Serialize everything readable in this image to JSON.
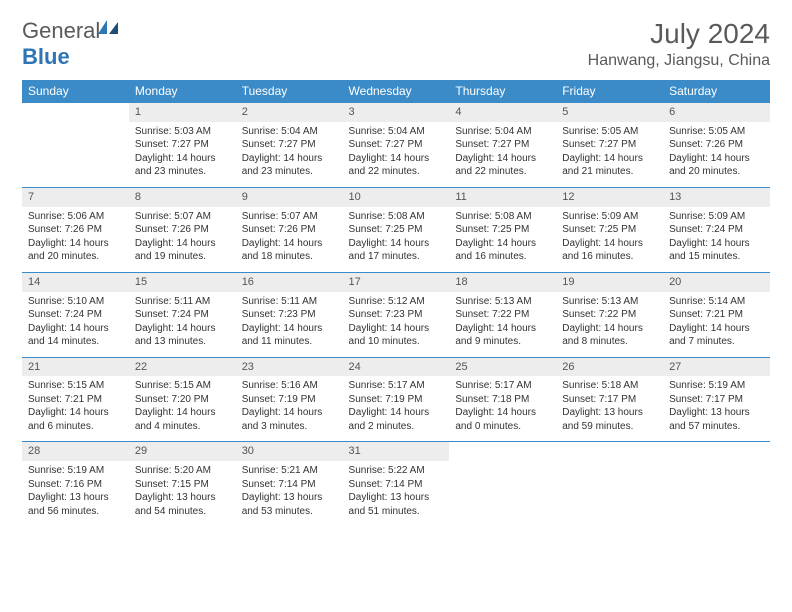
{
  "brand": {
    "part1": "General",
    "part2": "Blue"
  },
  "title": "July 2024",
  "location": "Hanwang, Jiangsu, China",
  "colors": {
    "header_bg": "#3b8bc8",
    "header_text": "#ffffff",
    "daynum_bg": "#ededed",
    "border": "#3b8bc8",
    "text": "#333333",
    "title_text": "#5a5a5a",
    "brand_blue": "#2e75b6"
  },
  "fonts": {
    "title_size": 28,
    "location_size": 16,
    "header_size": 12,
    "cell_size": 10
  },
  "weekdays": [
    "Sunday",
    "Monday",
    "Tuesday",
    "Wednesday",
    "Thursday",
    "Friday",
    "Saturday"
  ],
  "weeks": [
    [
      null,
      {
        "n": "1",
        "sr": "Sunrise: 5:03 AM",
        "ss": "Sunset: 7:27 PM",
        "dl1": "Daylight: 14 hours",
        "dl2": "and 23 minutes."
      },
      {
        "n": "2",
        "sr": "Sunrise: 5:04 AM",
        "ss": "Sunset: 7:27 PM",
        "dl1": "Daylight: 14 hours",
        "dl2": "and 23 minutes."
      },
      {
        "n": "3",
        "sr": "Sunrise: 5:04 AM",
        "ss": "Sunset: 7:27 PM",
        "dl1": "Daylight: 14 hours",
        "dl2": "and 22 minutes."
      },
      {
        "n": "4",
        "sr": "Sunrise: 5:04 AM",
        "ss": "Sunset: 7:27 PM",
        "dl1": "Daylight: 14 hours",
        "dl2": "and 22 minutes."
      },
      {
        "n": "5",
        "sr": "Sunrise: 5:05 AM",
        "ss": "Sunset: 7:27 PM",
        "dl1": "Daylight: 14 hours",
        "dl2": "and 21 minutes."
      },
      {
        "n": "6",
        "sr": "Sunrise: 5:05 AM",
        "ss": "Sunset: 7:26 PM",
        "dl1": "Daylight: 14 hours",
        "dl2": "and 20 minutes."
      }
    ],
    [
      {
        "n": "7",
        "sr": "Sunrise: 5:06 AM",
        "ss": "Sunset: 7:26 PM",
        "dl1": "Daylight: 14 hours",
        "dl2": "and 20 minutes."
      },
      {
        "n": "8",
        "sr": "Sunrise: 5:07 AM",
        "ss": "Sunset: 7:26 PM",
        "dl1": "Daylight: 14 hours",
        "dl2": "and 19 minutes."
      },
      {
        "n": "9",
        "sr": "Sunrise: 5:07 AM",
        "ss": "Sunset: 7:26 PM",
        "dl1": "Daylight: 14 hours",
        "dl2": "and 18 minutes."
      },
      {
        "n": "10",
        "sr": "Sunrise: 5:08 AM",
        "ss": "Sunset: 7:25 PM",
        "dl1": "Daylight: 14 hours",
        "dl2": "and 17 minutes."
      },
      {
        "n": "11",
        "sr": "Sunrise: 5:08 AM",
        "ss": "Sunset: 7:25 PM",
        "dl1": "Daylight: 14 hours",
        "dl2": "and 16 minutes."
      },
      {
        "n": "12",
        "sr": "Sunrise: 5:09 AM",
        "ss": "Sunset: 7:25 PM",
        "dl1": "Daylight: 14 hours",
        "dl2": "and 16 minutes."
      },
      {
        "n": "13",
        "sr": "Sunrise: 5:09 AM",
        "ss": "Sunset: 7:24 PM",
        "dl1": "Daylight: 14 hours",
        "dl2": "and 15 minutes."
      }
    ],
    [
      {
        "n": "14",
        "sr": "Sunrise: 5:10 AM",
        "ss": "Sunset: 7:24 PM",
        "dl1": "Daylight: 14 hours",
        "dl2": "and 14 minutes."
      },
      {
        "n": "15",
        "sr": "Sunrise: 5:11 AM",
        "ss": "Sunset: 7:24 PM",
        "dl1": "Daylight: 14 hours",
        "dl2": "and 13 minutes."
      },
      {
        "n": "16",
        "sr": "Sunrise: 5:11 AM",
        "ss": "Sunset: 7:23 PM",
        "dl1": "Daylight: 14 hours",
        "dl2": "and 11 minutes."
      },
      {
        "n": "17",
        "sr": "Sunrise: 5:12 AM",
        "ss": "Sunset: 7:23 PM",
        "dl1": "Daylight: 14 hours",
        "dl2": "and 10 minutes."
      },
      {
        "n": "18",
        "sr": "Sunrise: 5:13 AM",
        "ss": "Sunset: 7:22 PM",
        "dl1": "Daylight: 14 hours",
        "dl2": "and 9 minutes."
      },
      {
        "n": "19",
        "sr": "Sunrise: 5:13 AM",
        "ss": "Sunset: 7:22 PM",
        "dl1": "Daylight: 14 hours",
        "dl2": "and 8 minutes."
      },
      {
        "n": "20",
        "sr": "Sunrise: 5:14 AM",
        "ss": "Sunset: 7:21 PM",
        "dl1": "Daylight: 14 hours",
        "dl2": "and 7 minutes."
      }
    ],
    [
      {
        "n": "21",
        "sr": "Sunrise: 5:15 AM",
        "ss": "Sunset: 7:21 PM",
        "dl1": "Daylight: 14 hours",
        "dl2": "and 6 minutes."
      },
      {
        "n": "22",
        "sr": "Sunrise: 5:15 AM",
        "ss": "Sunset: 7:20 PM",
        "dl1": "Daylight: 14 hours",
        "dl2": "and 4 minutes."
      },
      {
        "n": "23",
        "sr": "Sunrise: 5:16 AM",
        "ss": "Sunset: 7:19 PM",
        "dl1": "Daylight: 14 hours",
        "dl2": "and 3 minutes."
      },
      {
        "n": "24",
        "sr": "Sunrise: 5:17 AM",
        "ss": "Sunset: 7:19 PM",
        "dl1": "Daylight: 14 hours",
        "dl2": "and 2 minutes."
      },
      {
        "n": "25",
        "sr": "Sunrise: 5:17 AM",
        "ss": "Sunset: 7:18 PM",
        "dl1": "Daylight: 14 hours",
        "dl2": "and 0 minutes."
      },
      {
        "n": "26",
        "sr": "Sunrise: 5:18 AM",
        "ss": "Sunset: 7:17 PM",
        "dl1": "Daylight: 13 hours",
        "dl2": "and 59 minutes."
      },
      {
        "n": "27",
        "sr": "Sunrise: 5:19 AM",
        "ss": "Sunset: 7:17 PM",
        "dl1": "Daylight: 13 hours",
        "dl2": "and 57 minutes."
      }
    ],
    [
      {
        "n": "28",
        "sr": "Sunrise: 5:19 AM",
        "ss": "Sunset: 7:16 PM",
        "dl1": "Daylight: 13 hours",
        "dl2": "and 56 minutes."
      },
      {
        "n": "29",
        "sr": "Sunrise: 5:20 AM",
        "ss": "Sunset: 7:15 PM",
        "dl1": "Daylight: 13 hours",
        "dl2": "and 54 minutes."
      },
      {
        "n": "30",
        "sr": "Sunrise: 5:21 AM",
        "ss": "Sunset: 7:14 PM",
        "dl1": "Daylight: 13 hours",
        "dl2": "and 53 minutes."
      },
      {
        "n": "31",
        "sr": "Sunrise: 5:22 AM",
        "ss": "Sunset: 7:14 PM",
        "dl1": "Daylight: 13 hours",
        "dl2": "and 51 minutes."
      },
      null,
      null,
      null
    ]
  ]
}
